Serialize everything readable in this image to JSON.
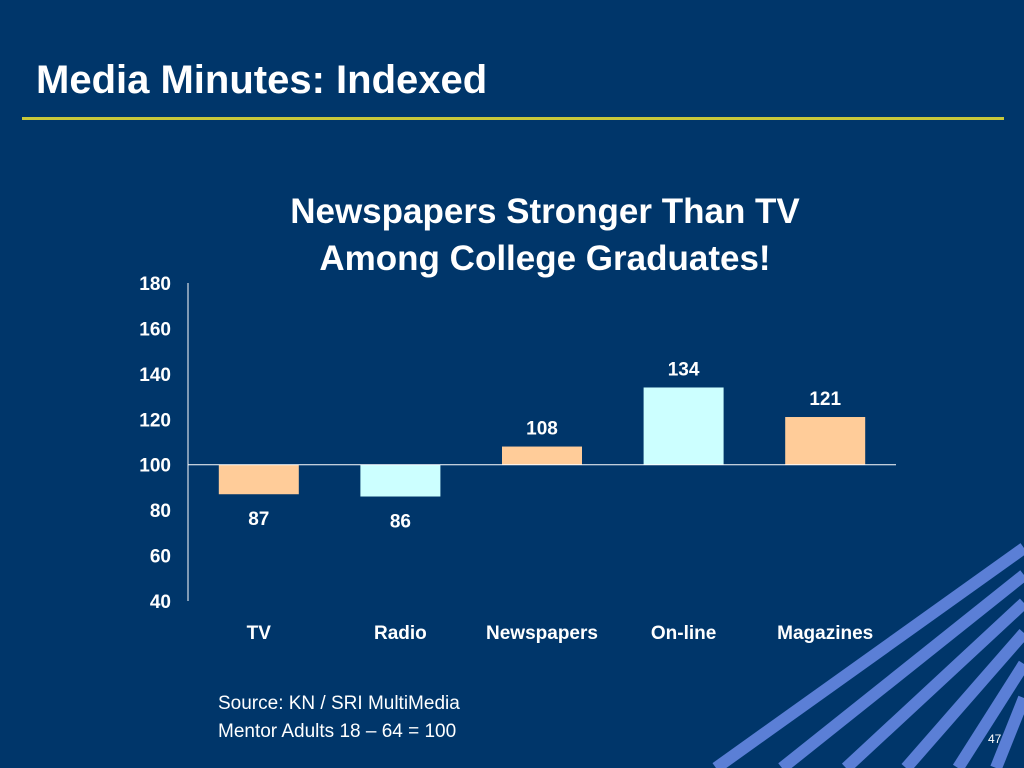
{
  "slide": {
    "title": "Media Minutes:  Indexed",
    "page_number": "47",
    "source_lines": [
      "Source: KN / SRI MultiMedia",
      "Mentor Adults 18 – 64 = 100"
    ]
  },
  "colors": {
    "background": "#00366a",
    "rule": "#c8c83a",
    "peach": "#ffcc99",
    "light_cyan": "#ccffff",
    "stripe": "#5b7fd6"
  },
  "chart_data": {
    "type": "bar",
    "title_lines": [
      "Newspapers Stronger Than TV",
      "Among College Graduates!"
    ],
    "categories": [
      "TV",
      "Radio",
      "Newspapers",
      "On-line",
      "Magazines"
    ],
    "values": [
      87,
      86,
      108,
      134,
      121
    ],
    "value_labels": [
      "87",
      "86",
      "108",
      "134",
      "121"
    ],
    "bar_colors": [
      "#ffcc99",
      "#ccffff",
      "#ffcc99",
      "#ccffff",
      "#ffcc99"
    ],
    "baseline": 100,
    "ylim": [
      40,
      180
    ],
    "yticks": [
      40,
      60,
      80,
      100,
      120,
      140,
      160,
      180
    ],
    "ytick_labels": [
      "40",
      "60",
      "80",
      "100",
      "120",
      "140",
      "160",
      "180"
    ],
    "xlabel": "",
    "ylabel": "",
    "grid": false
  }
}
